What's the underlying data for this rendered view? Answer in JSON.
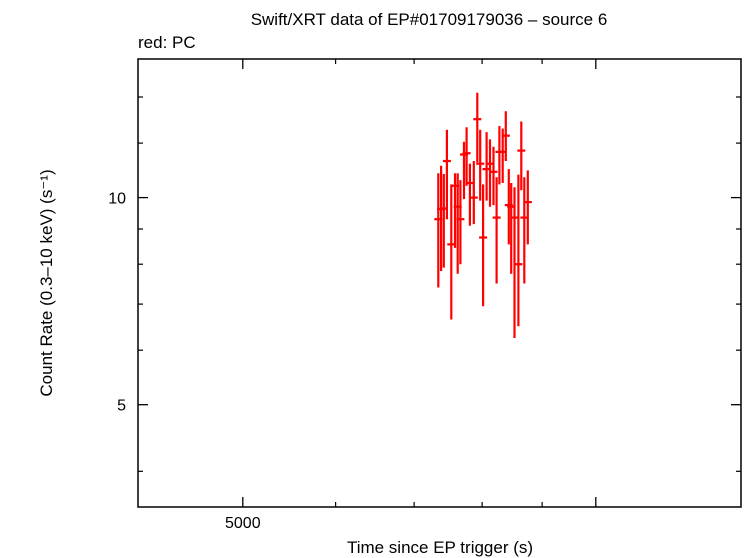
{
  "chart_data": {
    "type": "scatter",
    "title": "Swift/XRT data of EP#01709179036 – source 6",
    "subtitle": "red: PC",
    "xlabel": "Time since EP trigger (s)",
    "ylabel": "Count Rate (0.3–10 keV) (s⁻¹)",
    "x_scale": "log",
    "y_scale": "log",
    "xlim": [
      4070,
      13300
    ],
    "ylim": [
      3.55,
      15.9
    ],
    "x_tick_labels": [
      {
        "value": 5000,
        "label": "5000"
      }
    ],
    "y_tick_labels": [
      {
        "value": 10,
        "label": "10"
      },
      {
        "value": 5,
        "label": "5"
      }
    ],
    "grid": false,
    "series": [
      {
        "color": "#ff0000",
        "points": [
          {
            "x": 7340,
            "y": 9.3,
            "yerr_lo": 1.9,
            "yerr_hi": 1.55
          },
          {
            "x": 7380,
            "y": 9.62,
            "yerr_lo": 1.8,
            "yerr_hi": 1.5
          },
          {
            "x": 7420,
            "y": 9.64,
            "yerr_lo": 1.73,
            "yerr_hi": 1.18
          },
          {
            "x": 7465,
            "y": 11.3,
            "yerr_lo": 2.0,
            "yerr_hi": 1.25
          },
          {
            "x": 7530,
            "y": 8.55,
            "yerr_lo": 1.9,
            "yerr_hi": 1.9
          },
          {
            "x": 7585,
            "y": 10.4,
            "yerr_lo": 1.95,
            "yerr_hi": 0.45
          },
          {
            "x": 7625,
            "y": 9.7,
            "yerr_lo": 1.95,
            "yerr_hi": 1.15
          },
          {
            "x": 7665,
            "y": 9.3,
            "yerr_lo": 1.3,
            "yerr_hi": 1.3
          },
          {
            "x": 7720,
            "y": 11.55,
            "yerr_lo": 1.6,
            "yerr_hi": 0.5
          },
          {
            "x": 7760,
            "y": 11.6,
            "yerr_lo": 1.2,
            "yerr_hi": 1.05
          },
          {
            "x": 7810,
            "y": 10.5,
            "yerr_lo": 1.4,
            "yerr_hi": 0.7
          },
          {
            "x": 7870,
            "y": 10.0,
            "yerr_lo": 0.85,
            "yerr_hi": 1.3
          },
          {
            "x": 7925,
            "y": 13.0,
            "yerr_lo": 1.75,
            "yerr_hi": 1.2
          },
          {
            "x": 7970,
            "y": 11.2,
            "yerr_lo": 1.3,
            "yerr_hi": 1.35
          },
          {
            "x": 8015,
            "y": 8.75,
            "yerr_lo": 1.8,
            "yerr_hi": 1.7
          },
          {
            "x": 8070,
            "y": 11.0,
            "yerr_lo": 1.1,
            "yerr_hi": 1.45
          },
          {
            "x": 8125,
            "y": 11.2,
            "yerr_lo": 1.5,
            "yerr_hi": 0.95
          },
          {
            "x": 8180,
            "y": 10.9,
            "yerr_lo": 1.15,
            "yerr_hi": 0.95
          },
          {
            "x": 8230,
            "y": 9.35,
            "yerr_lo": 1.85,
            "yerr_hi": 1.35
          },
          {
            "x": 8275,
            "y": 11.65,
            "yerr_lo": 1.2,
            "yerr_hi": 1.05
          },
          {
            "x": 8330,
            "y": 11.65,
            "yerr_lo": 1.15,
            "yerr_hi": 0.95
          },
          {
            "x": 8380,
            "y": 12.3,
            "yerr_lo": 1.0,
            "yerr_hi": 1.05
          },
          {
            "x": 8430,
            "y": 9.75,
            "yerr_lo": 1.2,
            "yerr_hi": 1.25
          },
          {
            "x": 8470,
            "y": 9.7,
            "yerr_lo": 1.95,
            "yerr_hi": 0.8
          },
          {
            "x": 8525,
            "y": 9.35,
            "yerr_lo": 3.1,
            "yerr_hi": 1.0
          },
          {
            "x": 8590,
            "y": 8.0,
            "yerr_lo": 1.5,
            "yerr_hi": 2.8
          },
          {
            "x": 8640,
            "y": 11.7,
            "yerr_lo": 1.45,
            "yerr_hi": 1.2
          },
          {
            "x": 8690,
            "y": 9.35,
            "yerr_lo": 1.85,
            "yerr_hi": 1.35
          },
          {
            "x": 8750,
            "y": 9.85,
            "yerr_lo": 1.3,
            "yerr_hi": 1.1
          }
        ]
      }
    ]
  }
}
